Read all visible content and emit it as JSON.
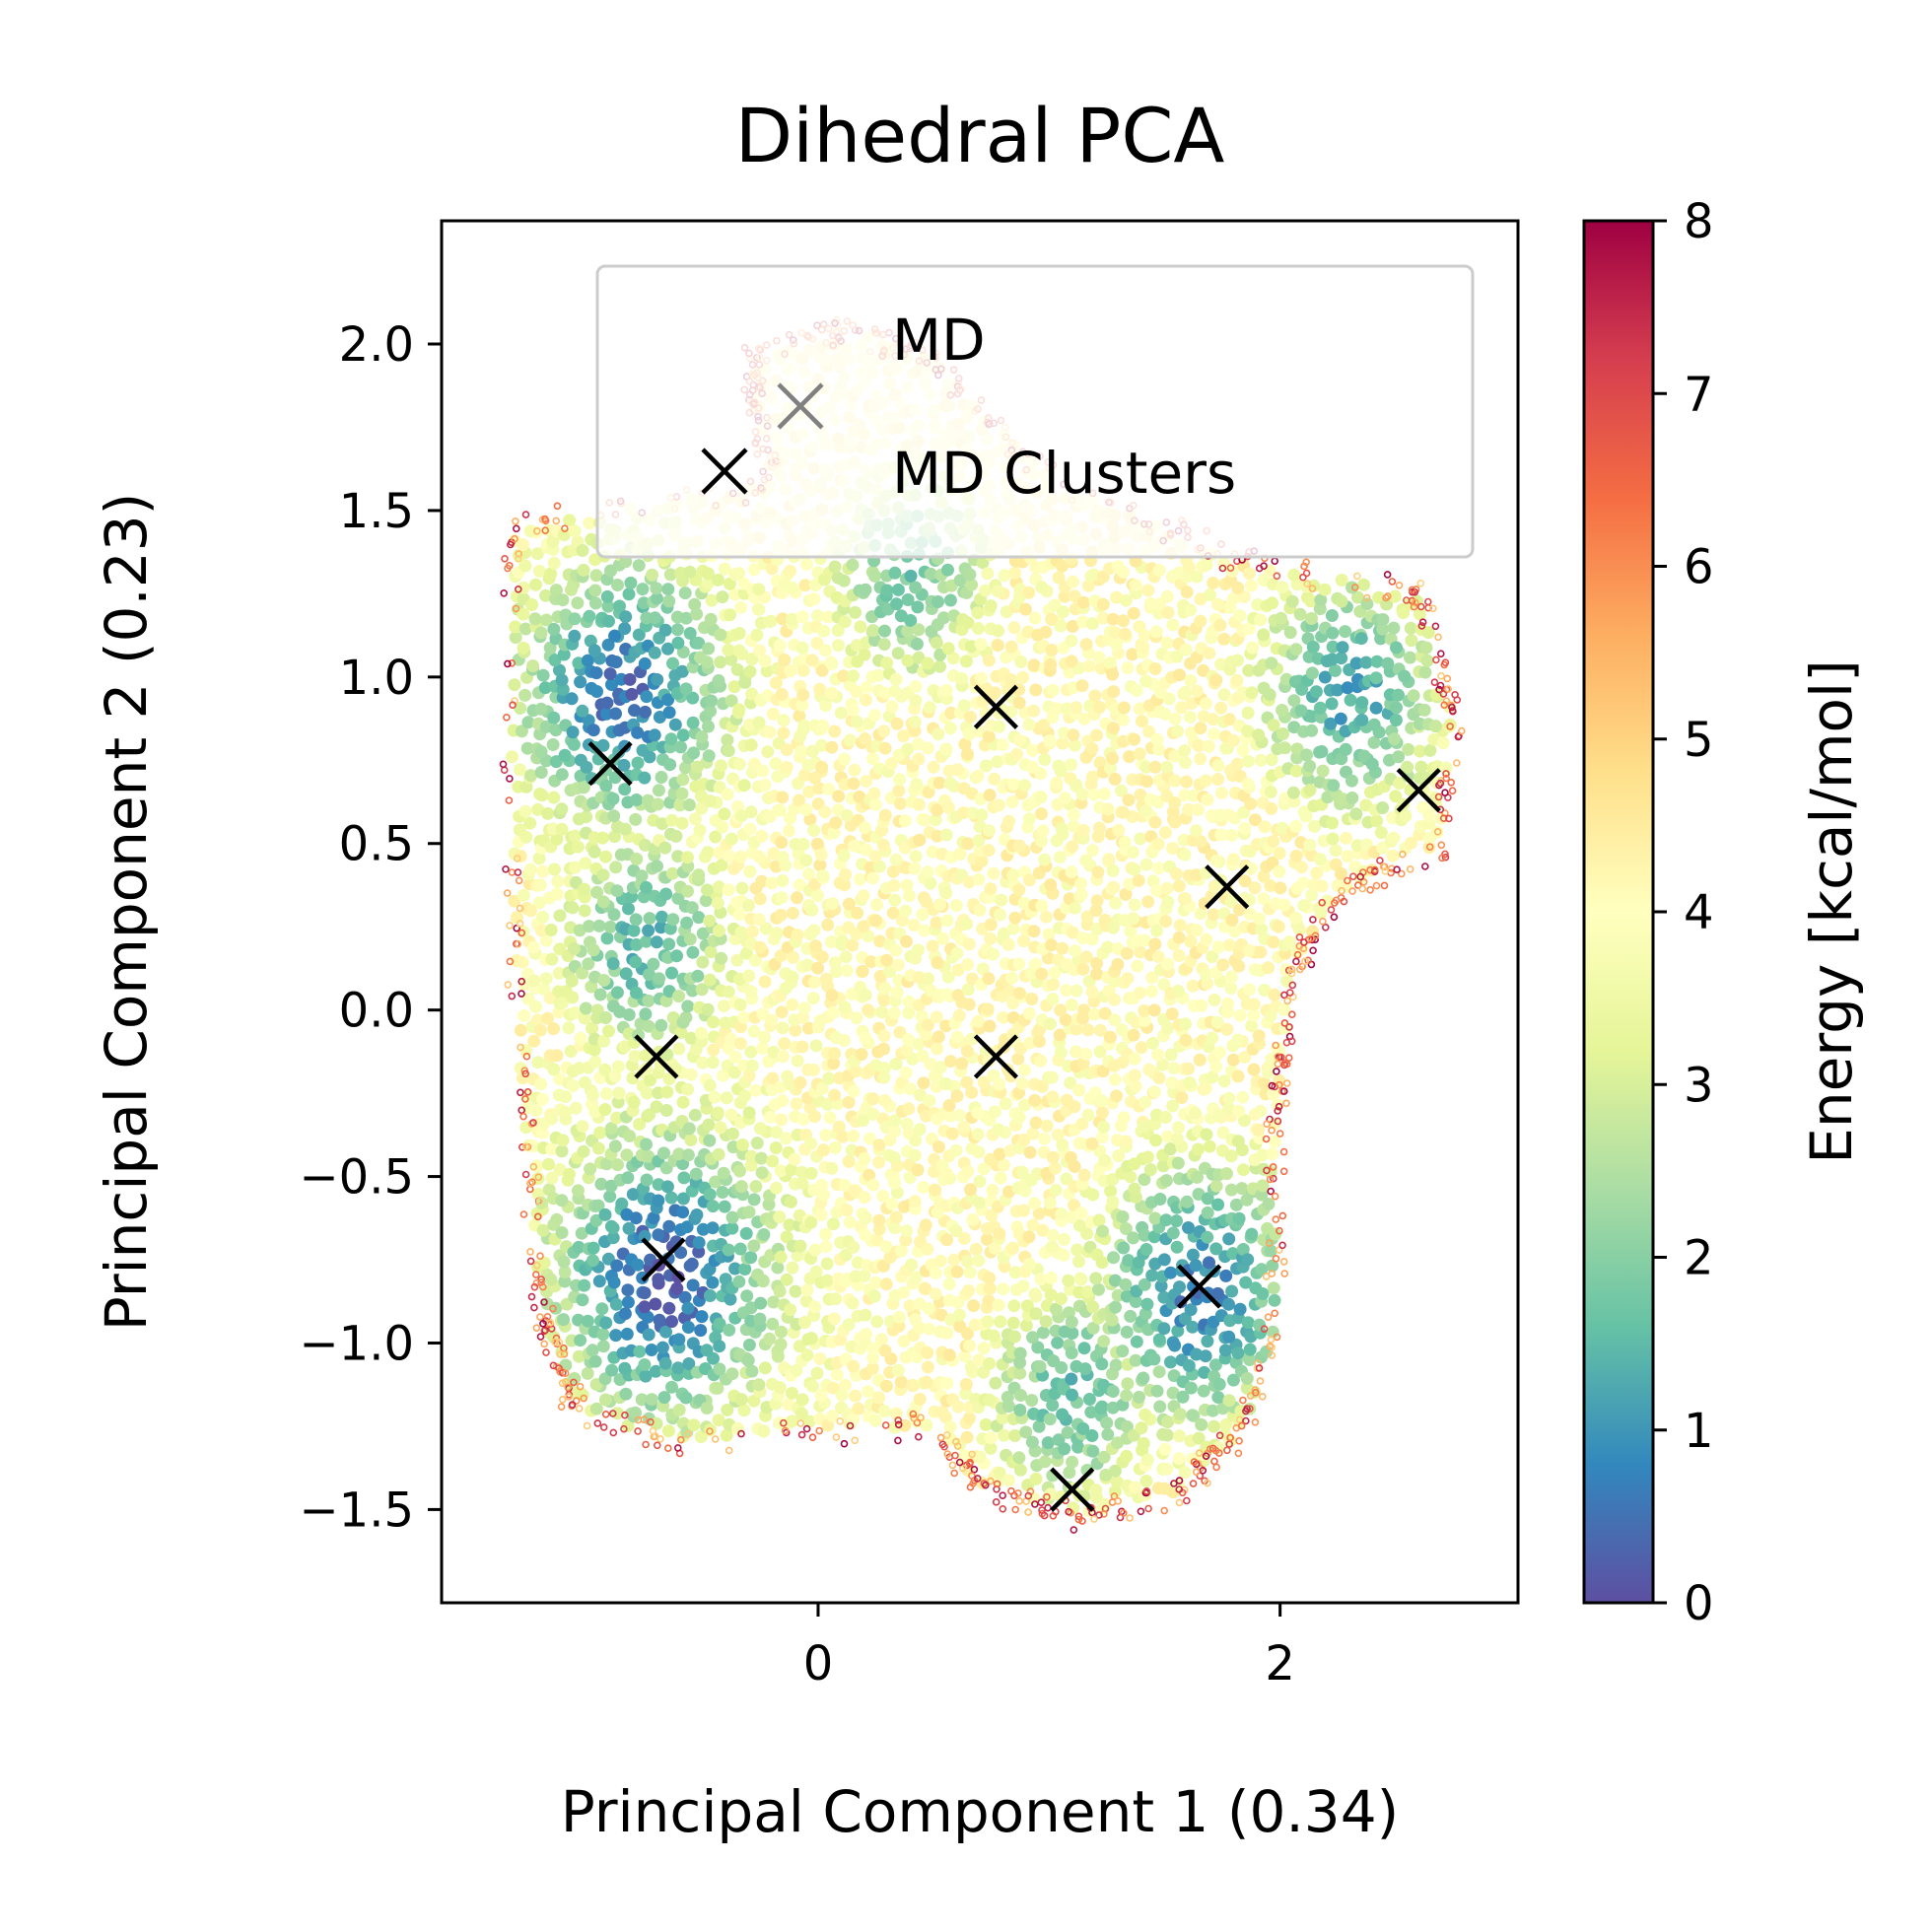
{
  "chart_data": {
    "type": "scatter",
    "title": "Dihedral PCA",
    "xlabel": "Principal Component 1 (0.34)",
    "ylabel": "Principal Component 2 (0.23)",
    "xlim": [
      -1.63,
      3.03
    ],
    "ylim": [
      -1.78,
      2.37
    ],
    "xticks": [
      0,
      2
    ],
    "xtick_labels": [
      "0",
      "2"
    ],
    "yticks": [
      -1.5,
      -1.0,
      -0.5,
      0.0,
      0.5,
      1.0,
      1.5,
      2.0
    ],
    "ytick_labels": [
      "−1.5",
      "−1.0",
      "−0.5",
      "0.0",
      "0.5",
      "1.0",
      "1.5",
      "2.0"
    ],
    "grid": false,
    "legend": {
      "location": "upper-right",
      "entries": [
        {
          "label": "MD",
          "marker": "x",
          "color": "#808080"
        },
        {
          "label": "MD Clusters",
          "marker": "x",
          "color": "#000000"
        }
      ]
    },
    "colorbar": {
      "label": "Energy [kcal/mol]",
      "colormap": "Spectral_r",
      "min": 0,
      "max": 8,
      "ticks": [
        0,
        1,
        2,
        3,
        4,
        5,
        6,
        7,
        8
      ],
      "tick_labels": [
        "0",
        "1",
        "2",
        "3",
        "4",
        "5",
        "6",
        "7",
        "8"
      ],
      "stops": [
        "#5e4fa2",
        "#3288bd",
        "#66c2a5",
        "#abdda4",
        "#e6f598",
        "#ffffbf",
        "#fee08b",
        "#fdae61",
        "#f46d43",
        "#d53e4f",
        "#9e0142"
      ]
    },
    "series": [
      {
        "name": "MD Clusters",
        "marker": "x",
        "color": "#000000",
        "points": [
          {
            "x": -0.9,
            "y": 0.74
          },
          {
            "x": 0.77,
            "y": 0.91
          },
          {
            "x": 2.6,
            "y": 0.66
          },
          {
            "x": 1.77,
            "y": 0.37
          },
          {
            "x": -0.7,
            "y": -0.14
          },
          {
            "x": 0.77,
            "y": -0.14
          },
          {
            "x": -0.67,
            "y": -0.75
          },
          {
            "x": 1.65,
            "y": -0.83
          },
          {
            "x": 1.1,
            "y": -1.44
          }
        ]
      }
    ],
    "md_density": {
      "description_region": "dense cloud of MD frames colored by energy",
      "basins": [
        {
          "x": -0.85,
          "y": 0.95,
          "energy": 0.5
        },
        {
          "x": -0.67,
          "y": -0.8,
          "energy": 0.2
        },
        {
          "x": 1.65,
          "y": -0.85,
          "energy": 0.7
        },
        {
          "x": 2.3,
          "y": 0.95,
          "energy": 1.2
        },
        {
          "x": -0.75,
          "y": 0.2,
          "energy": 1.5
        },
        {
          "x": 0.4,
          "y": 1.3,
          "energy": 1.8
        },
        {
          "x": 1.1,
          "y": -1.15,
          "energy": 1.6
        }
      ]
    }
  }
}
